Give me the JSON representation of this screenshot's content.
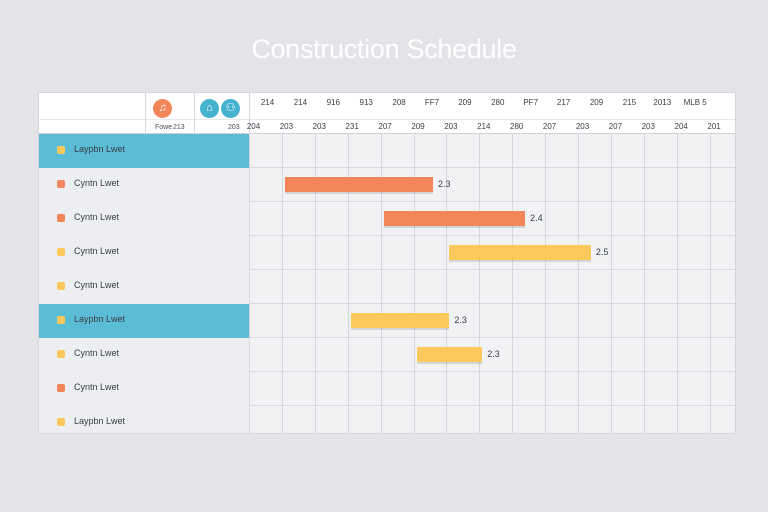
{
  "colors": {
    "highlight": "#5bbcd6",
    "orange": "#f3855a",
    "yellow": "#fcc95c"
  },
  "header": {
    "icon1": "♫",
    "icon2": "⌂",
    "icon3": "⚇",
    "label_left": "Fowe",
    "label_left_value": "213",
    "label_right_value": "203"
  },
  "chart_data": {
    "type": "gantt",
    "title": "Construction Schedule",
    "top_ticks": [
      "214",
      "214",
      "916",
      "913",
      "208",
      "FF7",
      "209",
      "280",
      "PF7",
      "217",
      "209",
      "215",
      "2013",
      "MLB 5"
    ],
    "bottom_ticks": [
      "204",
      "203",
      "203",
      "231",
      "207",
      "209",
      "203",
      "214",
      "280",
      "207",
      "203",
      "207",
      "203",
      "204",
      "201"
    ],
    "tasks": [
      {
        "label": "Laypbn Lwet",
        "marker_color": "#fcc95c",
        "highlighted": true,
        "start": null,
        "end": null,
        "value_label": "",
        "bar_color": ""
      },
      {
        "label": "Cyntn Lwet",
        "marker_color": "#f3855a",
        "highlighted": false,
        "start": 1,
        "end": 5.5,
        "value_label": "2.3",
        "bar_color": "#f3855a"
      },
      {
        "label": "Cyntn Lwet",
        "marker_color": "#f3855a",
        "highlighted": false,
        "start": 4,
        "end": 8.3,
        "value_label": "2.4",
        "bar_color": "#f3855a"
      },
      {
        "label": "Cyntn Lwet",
        "marker_color": "#fcc95c",
        "highlighted": false,
        "start": 6,
        "end": 10.3,
        "value_label": "2.5",
        "bar_color": "#fcc95c"
      },
      {
        "label": "Cyntn Lwet",
        "marker_color": "#fcc95c",
        "highlighted": false,
        "start": null,
        "end": null,
        "value_label": "",
        "bar_color": ""
      },
      {
        "label": "Laypbn Lwet",
        "marker_color": "#fcc95c",
        "highlighted": true,
        "start": 3,
        "end": 6,
        "value_label": "2.3",
        "bar_color": "#fcc95c"
      },
      {
        "label": "Cyntn Lwet",
        "marker_color": "#fcc95c",
        "highlighted": false,
        "start": 5,
        "end": 7,
        "value_label": "2.3",
        "bar_color": "#fcc95c"
      },
      {
        "label": "Cyntn Lwet",
        "marker_color": "#f3855a",
        "highlighted": false,
        "start": null,
        "end": null,
        "value_label": "",
        "bar_color": ""
      },
      {
        "label": "Laypbn Lwet",
        "marker_color": "#fcc95c",
        "highlighted": false,
        "start": null,
        "end": null,
        "value_label": "",
        "bar_color": ""
      }
    ]
  }
}
